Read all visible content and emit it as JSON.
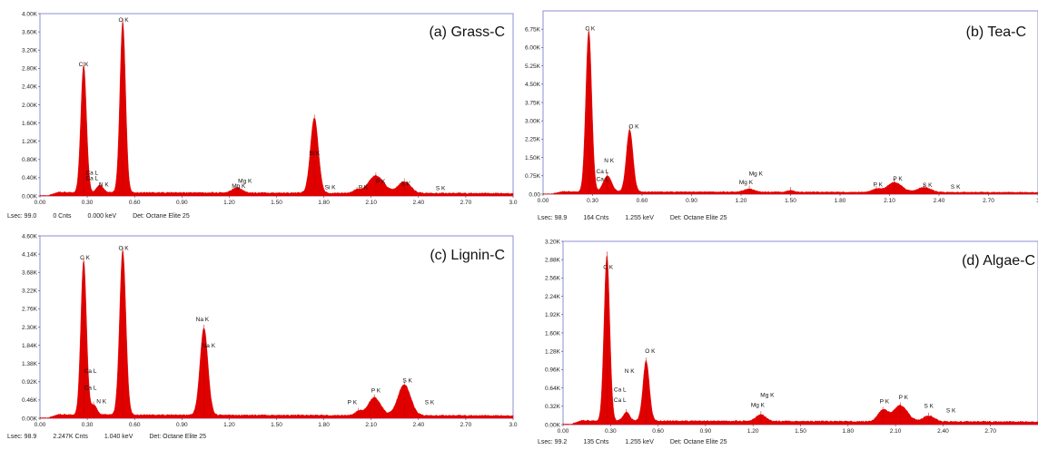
{
  "chart_data": [
    {
      "type": "area",
      "title": "(a) Grass-C",
      "xlim": [
        0,
        3.0
      ],
      "ylim": [
        0,
        4000
      ],
      "y_ticks": [
        "0.00K",
        "0.40K",
        "0.80K",
        "1.20K",
        "1.60K",
        "2.00K",
        "2.40K",
        "2.80K",
        "3.20K",
        "3.60K",
        "4.00K"
      ],
      "x_ticks": [
        "0.00",
        "0.30",
        "0.60",
        "0.90",
        "1.20",
        "1.50",
        "1.80",
        "2.10",
        "2.40",
        "2.70",
        "3.0"
      ],
      "color": "#e00000",
      "background": 70,
      "peaks": [
        {
          "x": 0.277,
          "h": 2800,
          "w": 0.018
        },
        {
          "x": 0.38,
          "h": 160,
          "w": 0.02
        },
        {
          "x": 0.525,
          "h": 3750,
          "w": 0.018
        },
        {
          "x": 1.25,
          "h": 120,
          "w": 0.03
        },
        {
          "x": 1.74,
          "h": 1650,
          "w": 0.025
        },
        {
          "x": 2.01,
          "h": 70,
          "w": 0.02
        },
        {
          "x": 2.13,
          "h": 380,
          "w": 0.05
        },
        {
          "x": 2.31,
          "h": 250,
          "w": 0.04
        }
      ],
      "labels": [
        {
          "text": "C K",
          "x": 0.277,
          "y": 2850
        },
        {
          "text": "O K",
          "x": 0.53,
          "y": 3820
        },
        {
          "text": "Ca L",
          "x": 0.33,
          "y": 470
        },
        {
          "text": "Ca L",
          "x": 0.33,
          "y": 350
        },
        {
          "text": "N K",
          "x": 0.405,
          "y": 210
        },
        {
          "text": "Mg K",
          "x": 1.3,
          "y": 290
        },
        {
          "text": "Mg K",
          "x": 1.26,
          "y": 180
        },
        {
          "text": "Si K",
          "x": 1.74,
          "y": 900
        },
        {
          "text": "Si K",
          "x": 1.84,
          "y": 150
        },
        {
          "text": "P K",
          "x": 2.05,
          "y": 150
        },
        {
          "text": "P K",
          "x": 2.16,
          "y": 280
        },
        {
          "text": "S K",
          "x": 2.32,
          "y": 230
        },
        {
          "text": "S K",
          "x": 2.54,
          "y": 130
        }
      ],
      "status": {
        "lsec": "Lsec: 99.0",
        "cnts": "0 Cnts",
        "kev": "0.000 keV",
        "det": "Det: Octane Elite 25"
      }
    },
    {
      "type": "area",
      "title": "(b) Tea-C",
      "xlim": [
        0,
        3.0
      ],
      "ylim": [
        0,
        7500
      ],
      "y_ticks": [
        "0.00",
        "0.75K",
        "1.50K",
        "2.25K",
        "3.00K",
        "3.75K",
        "4.50K",
        "5.25K",
        "6.00K",
        "6.75K"
      ],
      "x_ticks": [
        "0.00",
        "0.30",
        "0.60",
        "0.90",
        "1.20",
        "1.50",
        "1.80",
        "2.10",
        "2.40",
        "2.70",
        "3"
      ],
      "color": "#e00000",
      "background": 90,
      "peaks": [
        {
          "x": 0.277,
          "h": 6600,
          "w": 0.018
        },
        {
          "x": 0.39,
          "h": 650,
          "w": 0.025
        },
        {
          "x": 0.525,
          "h": 2550,
          "w": 0.02
        },
        {
          "x": 1.25,
          "h": 130,
          "w": 0.03
        },
        {
          "x": 1.5,
          "h": 70,
          "w": 0.02
        },
        {
          "x": 2.02,
          "h": 130,
          "w": 0.025
        },
        {
          "x": 2.13,
          "h": 400,
          "w": 0.045
        },
        {
          "x": 2.31,
          "h": 200,
          "w": 0.04
        }
      ],
      "labels": [
        {
          "text": "C K",
          "x": 0.285,
          "y": 6700
        },
        {
          "text": "O K",
          "x": 0.55,
          "y": 2700
        },
        {
          "text": "N K",
          "x": 0.4,
          "y": 1300
        },
        {
          "text": "Ca L",
          "x": 0.36,
          "y": 860
        },
        {
          "text": "Ca L",
          "x": 0.36,
          "y": 540
        },
        {
          "text": "Mg K",
          "x": 1.29,
          "y": 770
        },
        {
          "text": "Mg K",
          "x": 1.23,
          "y": 400
        },
        {
          "text": "P K",
          "x": 2.03,
          "y": 320
        },
        {
          "text": "P K",
          "x": 2.15,
          "y": 550
        },
        {
          "text": "S K",
          "x": 2.33,
          "y": 290
        },
        {
          "text": "S K",
          "x": 2.5,
          "y": 230
        }
      ],
      "status": {
        "lsec": "Lsec: 98.9",
        "cnts": "164 Cnts",
        "kev": "1.255 keV",
        "det": "Det: Octane Elite 25"
      }
    },
    {
      "type": "area",
      "title": "(c) Lignin-C",
      "xlim": [
        0,
        3.0
      ],
      "ylim": [
        0,
        4600
      ],
      "y_ticks": [
        "0.00K",
        "0.46K",
        "0.92K",
        "1.38K",
        "1.84K",
        "2.30K",
        "2.76K",
        "3.22K",
        "3.68K",
        "4.14K",
        "4.60K"
      ],
      "x_ticks": [
        "0.00",
        "0.30",
        "0.60",
        "0.90",
        "1.20",
        "1.50",
        "1.80",
        "2.10",
        "2.40",
        "2.70",
        "3.0"
      ],
      "color": "#e00000",
      "background": 80,
      "peaks": [
        {
          "x": 0.277,
          "h": 3900,
          "w": 0.018
        },
        {
          "x": 0.34,
          "h": 250,
          "w": 0.02
        },
        {
          "x": 0.525,
          "h": 4150,
          "w": 0.02
        },
        {
          "x": 1.04,
          "h": 2200,
          "w": 0.025
        },
        {
          "x": 2.02,
          "h": 110,
          "w": 0.02
        },
        {
          "x": 2.12,
          "h": 450,
          "w": 0.04
        },
        {
          "x": 2.31,
          "h": 780,
          "w": 0.04
        }
      ],
      "labels": [
        {
          "text": "C K",
          "x": 0.285,
          "y": 4000
        },
        {
          "text": "O K",
          "x": 0.53,
          "y": 4250
        },
        {
          "text": "Ca L",
          "x": 0.32,
          "y": 1150
        },
        {
          "text": "Ca L",
          "x": 0.32,
          "y": 720
        },
        {
          "text": "N K",
          "x": 0.39,
          "y": 380
        },
        {
          "text": "Na K",
          "x": 1.03,
          "y": 2450
        },
        {
          "text": "Na K",
          "x": 1.07,
          "y": 1780
        },
        {
          "text": "P K",
          "x": 1.98,
          "y": 350
        },
        {
          "text": "P K",
          "x": 2.13,
          "y": 650
        },
        {
          "text": "S K",
          "x": 2.33,
          "y": 900
        },
        {
          "text": "S K",
          "x": 2.47,
          "y": 350
        }
      ],
      "status": {
        "lsec": "Lsec: 98.9",
        "cnts": "2.247K Cnts",
        "kev": "1.040 keV",
        "det": "Det: Octane Elite 25"
      }
    },
    {
      "type": "area",
      "title": "(d) Algae-C",
      "xlim": [
        0,
        3.0
      ],
      "ylim": [
        0,
        3200
      ],
      "y_ticks": [
        "0.00K",
        "0.32K",
        "0.64K",
        "0.96K",
        "1.28K",
        "1.60K",
        "1.92K",
        "2.24K",
        "2.56K",
        "2.88K",
        "3.20K"
      ],
      "x_ticks": [
        "0.00",
        "0.30",
        "0.60",
        "0.90",
        "1.20",
        "1.50",
        "1.80",
        "2.10",
        "2.40",
        "2.70"
      ],
      "color": "#e00000",
      "background": 60,
      "peaks": [
        {
          "x": 0.277,
          "h": 2900,
          "w": 0.018
        },
        {
          "x": 0.4,
          "h": 150,
          "w": 0.02
        },
        {
          "x": 0.525,
          "h": 1050,
          "w": 0.02
        },
        {
          "x": 1.25,
          "h": 120,
          "w": 0.03
        },
        {
          "x": 2.02,
          "h": 200,
          "w": 0.03
        },
        {
          "x": 2.13,
          "h": 280,
          "w": 0.045
        },
        {
          "x": 2.31,
          "h": 100,
          "w": 0.035
        }
      ],
      "labels": [
        {
          "text": "C K",
          "x": 0.285,
          "y": 2720
        },
        {
          "text": "O K",
          "x": 0.55,
          "y": 1250
        },
        {
          "text": "N K",
          "x": 0.42,
          "y": 900
        },
        {
          "text": "Ca L",
          "x": 0.36,
          "y": 580
        },
        {
          "text": "Ca L",
          "x": 0.36,
          "y": 400
        },
        {
          "text": "Mg K",
          "x": 1.29,
          "y": 480
        },
        {
          "text": "Mg K",
          "x": 1.23,
          "y": 310
        },
        {
          "text": "P K",
          "x": 2.03,
          "y": 370
        },
        {
          "text": "P K",
          "x": 2.15,
          "y": 440
        },
        {
          "text": "S K",
          "x": 2.31,
          "y": 290
        },
        {
          "text": "S K",
          "x": 2.45,
          "y": 210
        }
      ],
      "status": {
        "lsec": "Lsec: 99.2",
        "cnts": "135 Cnts",
        "kev": "1.255 keV",
        "det": "Det: Octane Elite 25"
      }
    }
  ]
}
